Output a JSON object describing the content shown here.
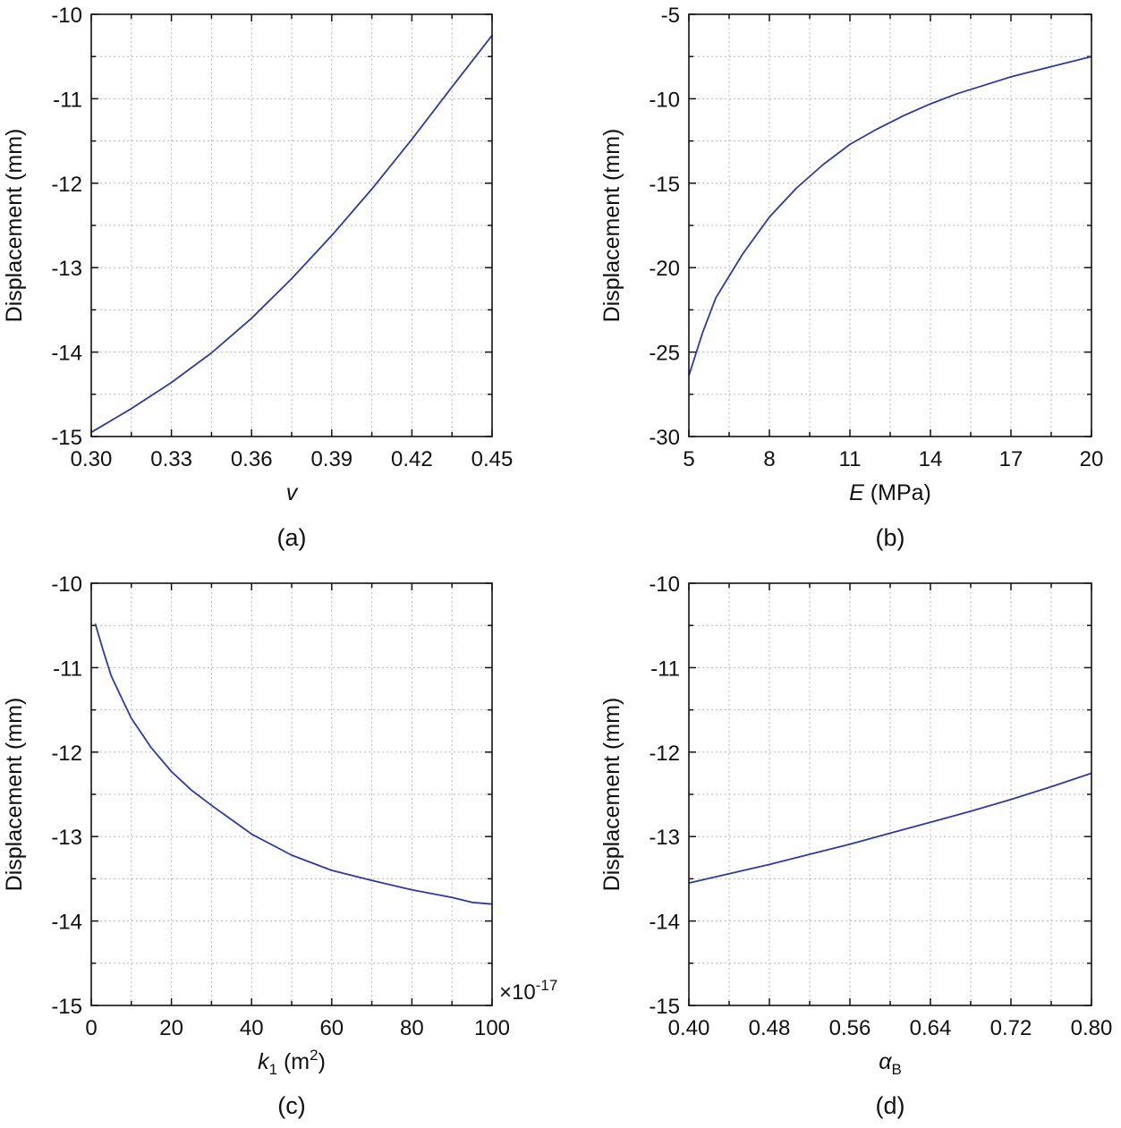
{
  "chart_data": [
    {
      "id": "a",
      "type": "line",
      "panel_label": "(a)",
      "xlabel": "v",
      "ylabel": "Displacement (mm)",
      "xlim": [
        0.3,
        0.45
      ],
      "ylim": [
        -15,
        -10
      ],
      "xticks": [
        "0.30",
        "0.33",
        "0.36",
        "0.39",
        "0.42",
        "0.45"
      ],
      "yticks": [
        "-10",
        "-11",
        "-12",
        "-13",
        "-14",
        "-15"
      ],
      "grid": true,
      "series": [
        {
          "name": "Displacement",
          "color": "#2e3a9c",
          "x": [
            0.3,
            0.315,
            0.33,
            0.345,
            0.36,
            0.375,
            0.39,
            0.405,
            0.42,
            0.435,
            0.45
          ],
          "y": [
            -14.95,
            -14.67,
            -14.36,
            -14.01,
            -13.6,
            -13.13,
            -12.62,
            -12.07,
            -11.48,
            -10.86,
            -10.25
          ]
        }
      ]
    },
    {
      "id": "b",
      "type": "line",
      "panel_label": "(b)",
      "xlabel": "E (MPa)",
      "ylabel": "Displacement (mm)",
      "xlim": [
        5,
        20
      ],
      "ylim": [
        -30,
        -5
      ],
      "xticks": [
        "5",
        "8",
        "11",
        "14",
        "17",
        "20"
      ],
      "yticks": [
        "-5",
        "-10",
        "-15",
        "-20",
        "-25",
        "-30"
      ],
      "grid": true,
      "series": [
        {
          "name": "Displacement",
          "color": "#2e3a9c",
          "x": [
            5,
            5.5,
            6,
            7,
            8,
            9,
            10,
            11,
            12,
            13,
            14,
            15,
            16,
            17,
            18,
            19,
            20
          ],
          "y": [
            -26.4,
            -23.9,
            -21.8,
            -19.2,
            -17.0,
            -15.3,
            -13.9,
            -12.7,
            -11.8,
            -11.0,
            -10.3,
            -9.7,
            -9.2,
            -8.7,
            -8.3,
            -7.9,
            -7.5
          ]
        }
      ]
    },
    {
      "id": "c",
      "type": "line",
      "panel_label": "(c)",
      "xlabel": "k1 (m2)",
      "ylabel": "Displacement (mm)",
      "x_multiplier": "×10-17",
      "xlim": [
        0,
        100
      ],
      "ylim": [
        -15,
        -10
      ],
      "xticks": [
        "0",
        "20",
        "40",
        "60",
        "80",
        "100"
      ],
      "yticks": [
        "-10",
        "-11",
        "-12",
        "-13",
        "-14",
        "-15"
      ],
      "grid": true,
      "series": [
        {
          "name": "Displacement",
          "color": "#2e3a9c",
          "x": [
            1,
            3,
            5,
            8,
            10,
            15,
            20,
            25,
            30,
            40,
            50,
            60,
            70,
            80,
            90,
            95,
            100
          ],
          "y": [
            -10.48,
            -10.8,
            -11.1,
            -11.4,
            -11.6,
            -11.95,
            -12.23,
            -12.45,
            -12.63,
            -12.97,
            -13.22,
            -13.4,
            -13.52,
            -13.63,
            -13.72,
            -13.78,
            -13.8
          ]
        }
      ]
    },
    {
      "id": "d",
      "type": "line",
      "panel_label": "(d)",
      "xlabel": "αB",
      "ylabel": "Displacement (mm)",
      "xlim": [
        0.4,
        0.8
      ],
      "ylim": [
        -15,
        -10
      ],
      "xticks": [
        "0.40",
        "0.48",
        "0.56",
        "0.64",
        "0.72",
        "0.80"
      ],
      "yticks": [
        "-10",
        "-11",
        "-12",
        "-13",
        "-14",
        "-15"
      ],
      "grid": true,
      "series": [
        {
          "name": "Displacement",
          "color": "#2e3a9c",
          "x": [
            0.4,
            0.44,
            0.48,
            0.52,
            0.56,
            0.6,
            0.64,
            0.68,
            0.72,
            0.76,
            0.8
          ],
          "y": [
            -13.55,
            -13.44,
            -13.33,
            -13.21,
            -13.09,
            -12.96,
            -12.83,
            -12.7,
            -12.56,
            -12.41,
            -12.25
          ]
        }
      ]
    }
  ]
}
